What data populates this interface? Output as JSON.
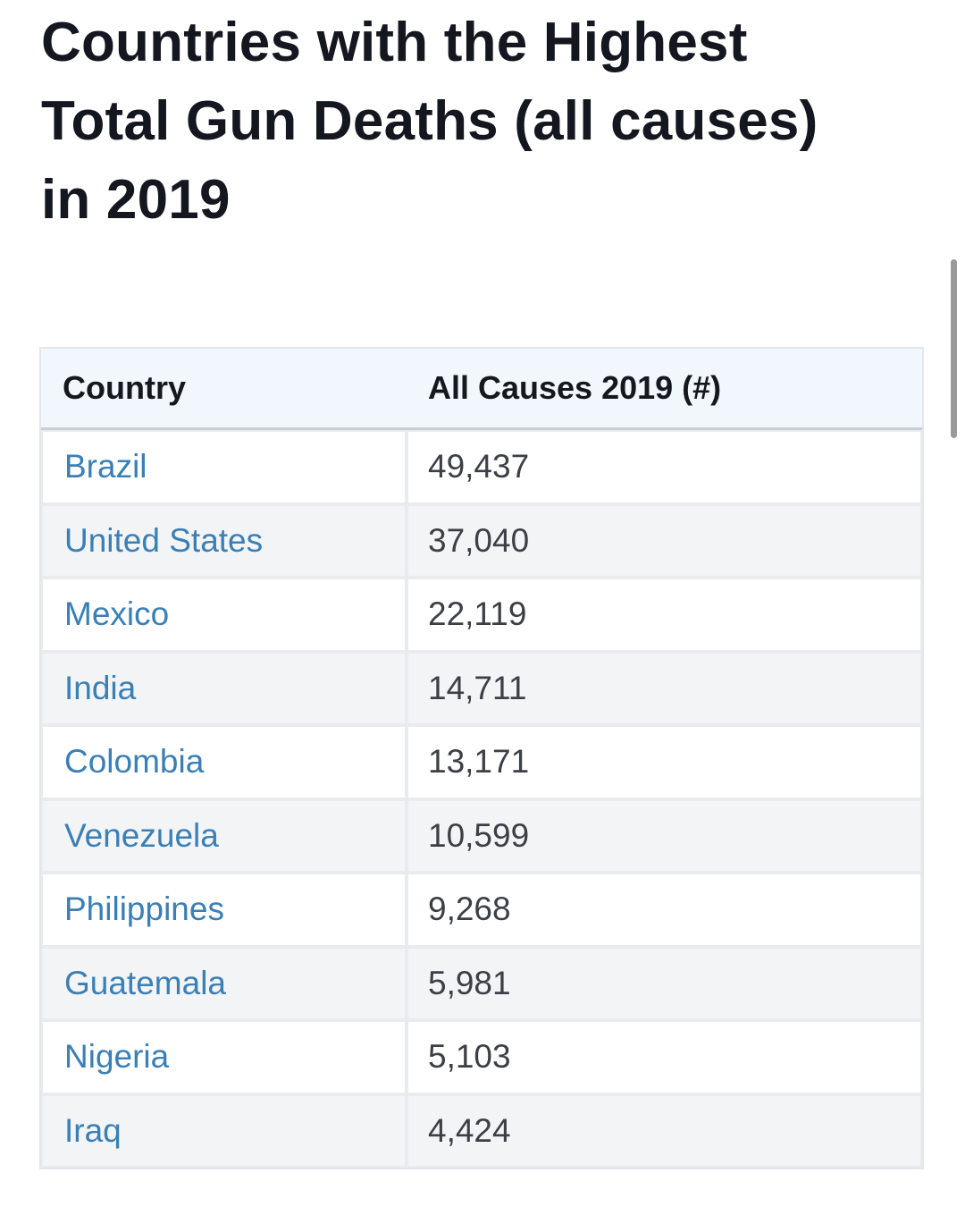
{
  "page": {
    "title_line1": "Countries with the Highest",
    "title_line2": "Total Gun Deaths (all causes)",
    "title_line3": "in 2019"
  },
  "table": {
    "headers": {
      "country": "Country",
      "value": "All Causes 2019 (#)"
    },
    "rows": [
      {
        "country": "Brazil",
        "value": "49,437"
      },
      {
        "country": "United States",
        "value": "37,040"
      },
      {
        "country": "Mexico",
        "value": "22,119"
      },
      {
        "country": "India",
        "value": "14,711"
      },
      {
        "country": "Colombia",
        "value": "13,171"
      },
      {
        "country": "Venezuela",
        "value": "10,599"
      },
      {
        "country": "Philippines",
        "value": "9,268"
      },
      {
        "country": "Guatemala",
        "value": "5,981"
      },
      {
        "country": "Nigeria",
        "value": "5,103"
      },
      {
        "country": "Iraq",
        "value": "4,424"
      }
    ]
  },
  "colors": {
    "link": "#3a7fb5",
    "header_bg": "#f1f7fc",
    "row_alt": "#f3f4f6",
    "text": "#14171f"
  }
}
